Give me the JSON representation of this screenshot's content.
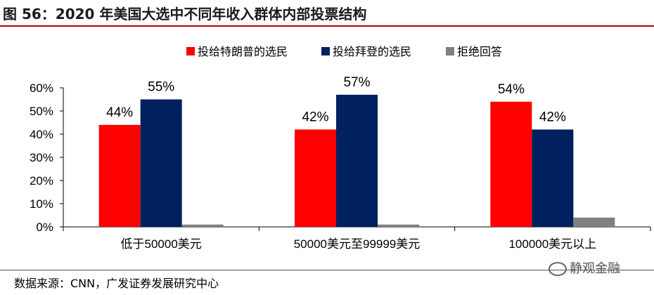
{
  "title": "图 56：2020 年美国大选中不同年收入群体内部投票结构",
  "source": "数据来源：CNN，广发证券发展研究中心",
  "watermark": "静观金融",
  "chart_data": {
    "type": "bar",
    "categories": [
      "低于50000美元",
      "50000美元至99999美元",
      "100000美元以上"
    ],
    "series": [
      {
        "name": "投给特朗普的选民",
        "color": "#ff0000",
        "values": [
          44,
          42,
          54
        ],
        "labels": [
          "44%",
          "42%",
          "54%"
        ]
      },
      {
        "name": "投给拜登的选民",
        "color": "#002060",
        "values": [
          55,
          57,
          42
        ],
        "labels": [
          "55%",
          "57%",
          "42%"
        ]
      },
      {
        "name": "拒绝回答",
        "color": "#808080",
        "values": [
          1,
          1,
          4
        ],
        "labels": [
          "",
          "",
          ""
        ]
      }
    ],
    "yticks": [
      "0%",
      "10%",
      "20%",
      "30%",
      "40%",
      "50%",
      "60%"
    ],
    "ylim": [
      0,
      60
    ],
    "legend_position": "top-right"
  }
}
